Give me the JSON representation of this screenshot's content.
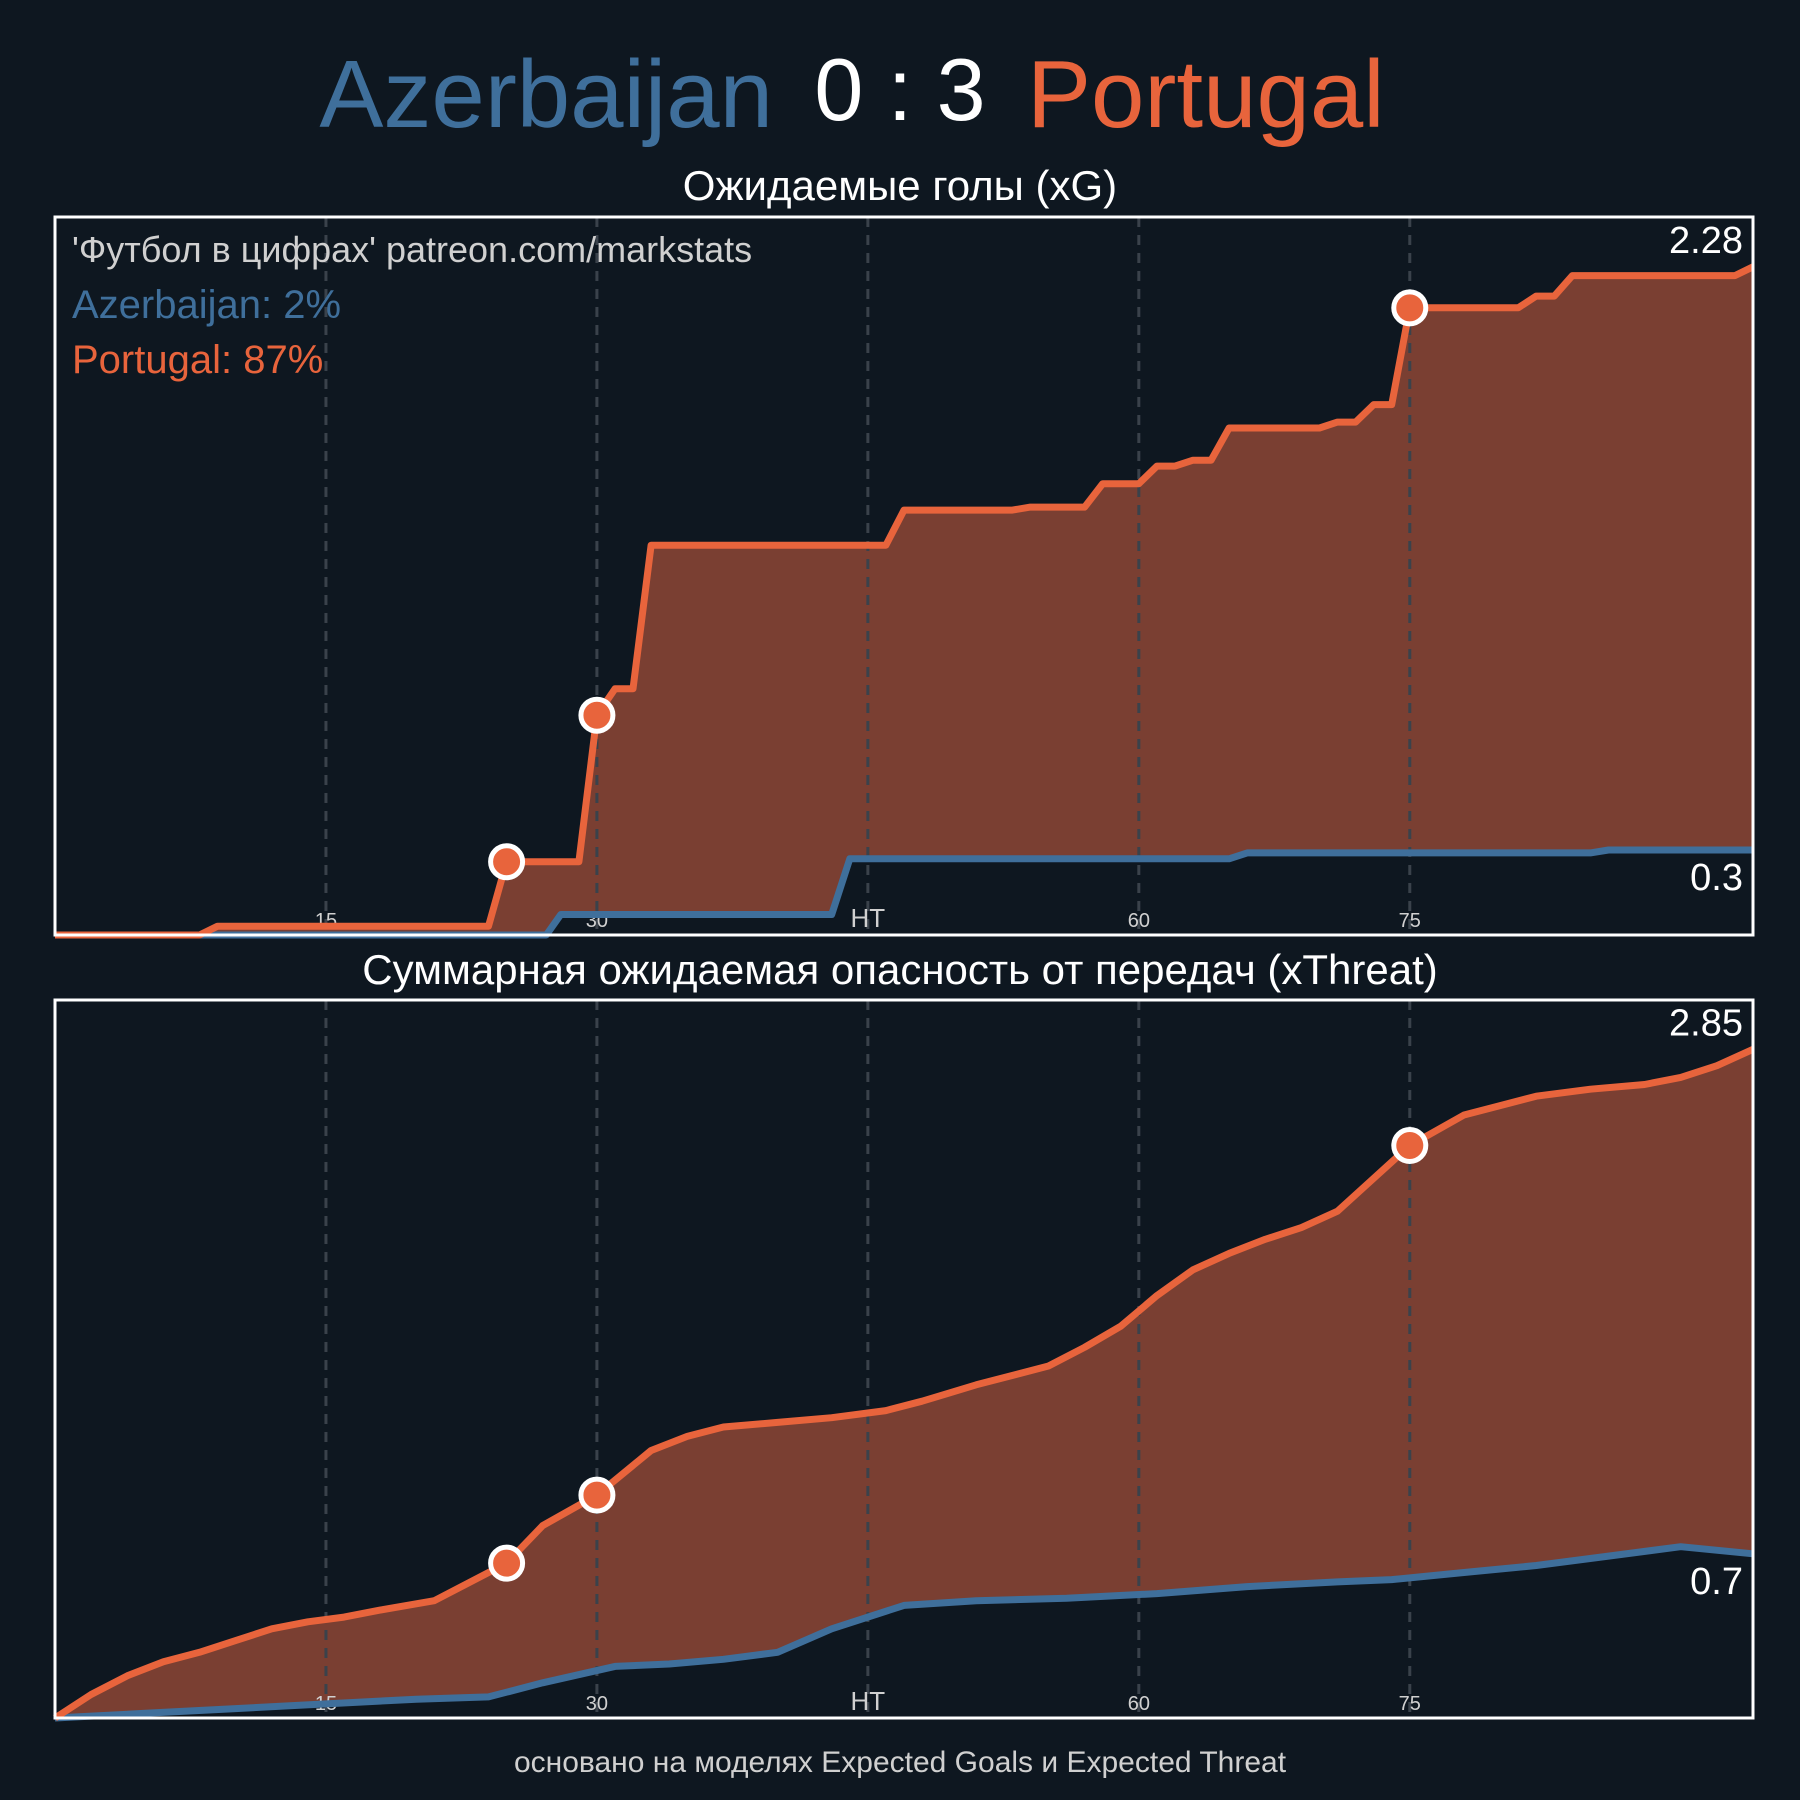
{
  "header": {
    "home_team": "Azerbaijan",
    "score": "0 : 3",
    "away_team": "Portugal"
  },
  "colors": {
    "background": "#0e1720",
    "home": "#3f6f9b",
    "away": "#e8643c",
    "fill": "#7a3f32",
    "text": "#ffffff",
    "muted": "#d0d0d0"
  },
  "watermark": "'Футбол в цифрах' patreon.com/markstats",
  "win_prob": {
    "home": "Azerbaijan: 2%",
    "away": "Portugal: 87%"
  },
  "footer": "основано на моделях Expected Goals и Expected Threat",
  "chart_data": [
    {
      "type": "area",
      "title": "Ожидаемые голы (xG)",
      "x_ticks": [
        {
          "x": 15,
          "label": "15"
        },
        {
          "x": 30,
          "label": "30"
        },
        {
          "x": 45,
          "label": "HT"
        },
        {
          "x": 60,
          "label": "60"
        },
        {
          "x": 75,
          "label": "75"
        }
      ],
      "xlim": [
        0,
        94
      ],
      "ylim": [
        0,
        2.45
      ],
      "grid": true,
      "end_labels": {
        "away": "2.28",
        "home": "0.3"
      },
      "series": [
        {
          "name": "Azerbaijan",
          "points": [
            [
              0,
              0
            ],
            [
              27.2,
              0
            ],
            [
              28,
              0.07
            ],
            [
              43,
              0.07
            ],
            [
              44,
              0.26
            ],
            [
              65,
              0.26
            ],
            [
              66,
              0.28
            ],
            [
              85,
              0.28
            ],
            [
              86,
              0.29
            ],
            [
              94,
              0.29
            ]
          ],
          "goals": []
        },
        {
          "name": "Portugal",
          "points": [
            [
              0,
              0
            ],
            [
              8,
              0
            ],
            [
              9,
              0.03
            ],
            [
              24,
              0.03
            ],
            [
              25,
              0.25
            ],
            [
              29,
              0.25
            ],
            [
              30,
              0.75
            ],
            [
              31,
              0.84
            ],
            [
              32,
              0.84
            ],
            [
              33,
              1.33
            ],
            [
              46,
              1.33
            ],
            [
              47,
              1.45
            ],
            [
              53,
              1.45
            ],
            [
              54,
              1.46
            ],
            [
              57,
              1.46
            ],
            [
              58,
              1.54
            ],
            [
              60,
              1.54
            ],
            [
              61,
              1.6
            ],
            [
              62,
              1.6
            ],
            [
              63,
              1.62
            ],
            [
              64,
              1.62
            ],
            [
              65,
              1.73
            ],
            [
              70,
              1.73
            ],
            [
              71,
              1.75
            ],
            [
              72,
              1.75
            ],
            [
              73,
              1.81
            ],
            [
              74,
              1.81
            ],
            [
              75,
              2.14
            ],
            [
              81,
              2.14
            ],
            [
              82,
              2.18
            ],
            [
              83,
              2.18
            ],
            [
              84,
              2.25
            ],
            [
              93,
              2.25
            ],
            [
              94,
              2.28
            ]
          ],
          "goals": [
            [
              25,
              0.25
            ],
            [
              30,
              0.75
            ],
            [
              75,
              2.14
            ]
          ]
        }
      ]
    },
    {
      "type": "area",
      "title": "Суммарная ожидаемая опасность от передач (xThreat)",
      "x_ticks": [
        {
          "x": 15,
          "label": "15"
        },
        {
          "x": 30,
          "label": "30"
        },
        {
          "x": 45,
          "label": "HT"
        },
        {
          "x": 60,
          "label": "60"
        },
        {
          "x": 75,
          "label": "75"
        }
      ],
      "xlim": [
        0,
        94
      ],
      "ylim": [
        0,
        3.06
      ],
      "grid": true,
      "end_labels": {
        "away": "2.85",
        "home": "0.7"
      },
      "series": [
        {
          "name": "Azerbaijan",
          "points": [
            [
              0,
              0
            ],
            [
              5,
              0.02
            ],
            [
              10,
              0.04
            ],
            [
              15,
              0.06
            ],
            [
              20,
              0.08
            ],
            [
              24,
              0.09
            ],
            [
              27,
              0.15
            ],
            [
              31,
              0.22
            ],
            [
              34,
              0.23
            ],
            [
              37,
              0.25
            ],
            [
              40,
              0.28
            ],
            [
              43,
              0.38
            ],
            [
              47,
              0.48
            ],
            [
              51,
              0.5
            ],
            [
              56,
              0.51
            ],
            [
              61,
              0.53
            ],
            [
              66,
              0.56
            ],
            [
              71,
              0.58
            ],
            [
              74,
              0.59
            ],
            [
              78,
              0.62
            ],
            [
              82,
              0.65
            ],
            [
              86,
              0.69
            ],
            [
              90,
              0.73
            ],
            [
              94,
              0.7
            ]
          ],
          "goals": []
        },
        {
          "name": "Portugal",
          "points": [
            [
              0,
              0
            ],
            [
              2,
              0.1
            ],
            [
              4,
              0.18
            ],
            [
              6,
              0.24
            ],
            [
              8,
              0.28
            ],
            [
              10,
              0.33
            ],
            [
              12,
              0.38
            ],
            [
              14,
              0.41
            ],
            [
              16,
              0.43
            ],
            [
              18,
              0.46
            ],
            [
              21,
              0.5
            ],
            [
              25,
              0.66
            ],
            [
              27,
              0.82
            ],
            [
              30,
              0.95
            ],
            [
              33,
              1.14
            ],
            [
              35,
              1.2
            ],
            [
              37,
              1.24
            ],
            [
              40,
              1.26
            ],
            [
              43,
              1.28
            ],
            [
              46,
              1.31
            ],
            [
              48,
              1.35
            ],
            [
              51,
              1.42
            ],
            [
              55,
              1.5
            ],
            [
              57,
              1.58
            ],
            [
              59,
              1.67
            ],
            [
              61,
              1.8
            ],
            [
              63,
              1.91
            ],
            [
              65,
              1.98
            ],
            [
              67,
              2.04
            ],
            [
              69,
              2.09
            ],
            [
              71,
              2.16
            ],
            [
              73,
              2.3
            ],
            [
              75,
              2.44
            ],
            [
              78,
              2.57
            ],
            [
              80,
              2.61
            ],
            [
              82,
              2.65
            ],
            [
              85,
              2.68
            ],
            [
              88,
              2.7
            ],
            [
              90,
              2.73
            ],
            [
              92,
              2.78
            ],
            [
              94,
              2.85
            ]
          ],
          "goals": [
            [
              25,
              0.66
            ],
            [
              30,
              0.95
            ],
            [
              75,
              2.44
            ]
          ]
        }
      ]
    }
  ]
}
